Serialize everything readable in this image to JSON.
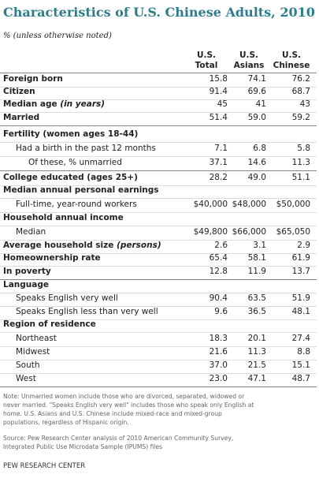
{
  "title": "Characteristics of U.S. Chinese Adults, 2010",
  "subtitle": "% (unless otherwise noted)",
  "columns": [
    [
      "U.S.",
      "Total"
    ],
    [
      "U.S.",
      "Asians"
    ],
    [
      "U.S.",
      "Chinese"
    ]
  ],
  "rows": [
    {
      "label": "Foreign born",
      "level": 0,
      "cells": [
        "15.8",
        "74.1",
        "76.2"
      ]
    },
    {
      "label": "Citizen",
      "level": 0,
      "cells": [
        "91.4",
        "69.6",
        "68.7"
      ]
    },
    {
      "label": "Median age",
      "label_italic": "(in years)",
      "level": 0,
      "cells": [
        "45",
        "41",
        "43"
      ]
    },
    {
      "label": "Married",
      "level": 0,
      "cells": [
        "51.4",
        "59.0",
        "59.2"
      ]
    },
    {
      "label": "Fertility (women ages 18-44)",
      "level": 0,
      "cells": []
    },
    {
      "label": "Had a birth in the past 12 months",
      "level": 1,
      "cells": [
        "7.1",
        "6.8",
        "5.8"
      ]
    },
    {
      "label": "Of these, % unmarried",
      "level": 2,
      "cells": [
        "37.1",
        "14.6",
        "11.3"
      ]
    },
    {
      "label": "College educated (ages 25+)",
      "level": 0,
      "cells": [
        "28.2",
        "49.0",
        "51.1"
      ]
    },
    {
      "label": "Median annual personal earnings",
      "level": 0,
      "cells": []
    },
    {
      "label": "Full-time, year-round workers",
      "level": 1,
      "cells": [
        "$40,000",
        "$48,000",
        "$50,000"
      ]
    },
    {
      "label": "Household annual income",
      "level": 0,
      "cells": []
    },
    {
      "label": "Median",
      "level": 1,
      "cells": [
        "$49,800",
        "$66,000",
        "$65,050"
      ]
    },
    {
      "label": "Average household size",
      "label_italic": "(persons)",
      "level": 0,
      "cells": [
        "2.6",
        "3.1",
        "2.9"
      ]
    },
    {
      "label": "Homeownership rate",
      "level": 0,
      "cells": [
        "65.4",
        "58.1",
        "61.9"
      ]
    },
    {
      "label": "In poverty",
      "level": 0,
      "cells": [
        "12.8",
        "11.9",
        "13.7"
      ]
    },
    {
      "label": "Language",
      "level": 0,
      "cells": []
    },
    {
      "label": "Speaks English very well",
      "level": 1,
      "cells": [
        "90.4",
        "63.5",
        "51.9"
      ]
    },
    {
      "label": "Speaks English less than very well",
      "level": 1,
      "cells": [
        "9.6",
        "36.5",
        "48.1"
      ]
    },
    {
      "label": "Region of residence",
      "level": 0,
      "cells": []
    },
    {
      "label": "Northeast",
      "level": 1,
      "cells": [
        "18.3",
        "20.1",
        "27.4"
      ]
    },
    {
      "label": "Midwest",
      "level": 1,
      "cells": [
        "21.6",
        "11.3",
        "8.8"
      ]
    },
    {
      "label": "South",
      "level": 1,
      "cells": [
        "37.0",
        "21.5",
        "15.1"
      ]
    },
    {
      "label": "West",
      "level": 1,
      "cells": [
        "23.0",
        "47.1",
        "48.7"
      ]
    }
  ],
  "note": [
    "Note: Unmarried women include those who are divorced, separated, widowed or",
    "never married. \"Speaks English very well\" includes those who speak only English at",
    "home. U.S. Asians and U.S. Chinese include mixed-race and mixed-group",
    "populations, regardless of Hispanic origin."
  ],
  "source": [
    "Source: Pew Research Center analysis of 2010 American Community Survey,",
    "Integrated Public Use Microdata Sample (IPUMS) files"
  ],
  "footer": "PEW RESEARCH CENTER"
}
